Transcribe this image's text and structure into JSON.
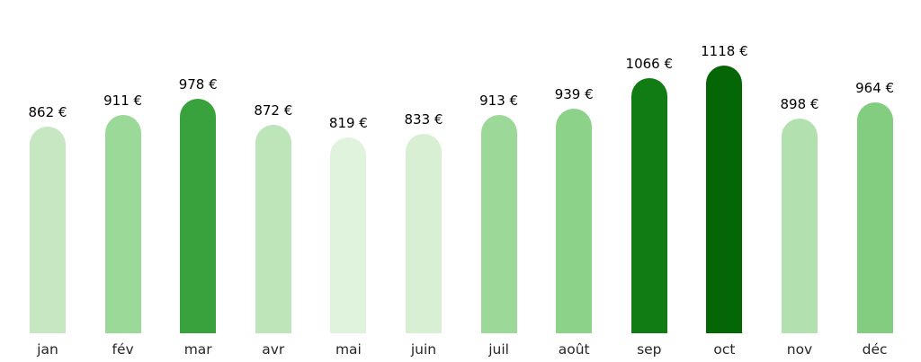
{
  "chart_data": {
    "type": "bar",
    "title": "",
    "xlabel": "",
    "ylabel": "",
    "unit": "€",
    "categories": [
      "jan",
      "fév",
      "mar",
      "avr",
      "mai",
      "juin",
      "juil",
      "août",
      "sep",
      "oct",
      "nov",
      "déc"
    ],
    "values": [
      862,
      911,
      978,
      872,
      819,
      833,
      913,
      939,
      1066,
      1118,
      898,
      964
    ],
    "value_labels": [
      "862 €",
      "911 €",
      "978 €",
      "872 €",
      "819 €",
      "833 €",
      "913 €",
      "939 €",
      "1066 €",
      "1118 €",
      "898 €",
      "964 €"
    ],
    "bar_colors": [
      "#c7e7c3",
      "#9bd998",
      "#3aa23c",
      "#bee4ba",
      "#e0f3dc",
      "#d8efd3",
      "#9cd999",
      "#8cd389",
      "#117c13",
      "#056605",
      "#b2e0ae",
      "#82cd7f"
    ],
    "ylim": [
      0,
      1118
    ],
    "grid": false,
    "legend": "none",
    "value_label_color": "#000000",
    "tick_label_color": "#262626",
    "background_color": "#ffffff"
  }
}
